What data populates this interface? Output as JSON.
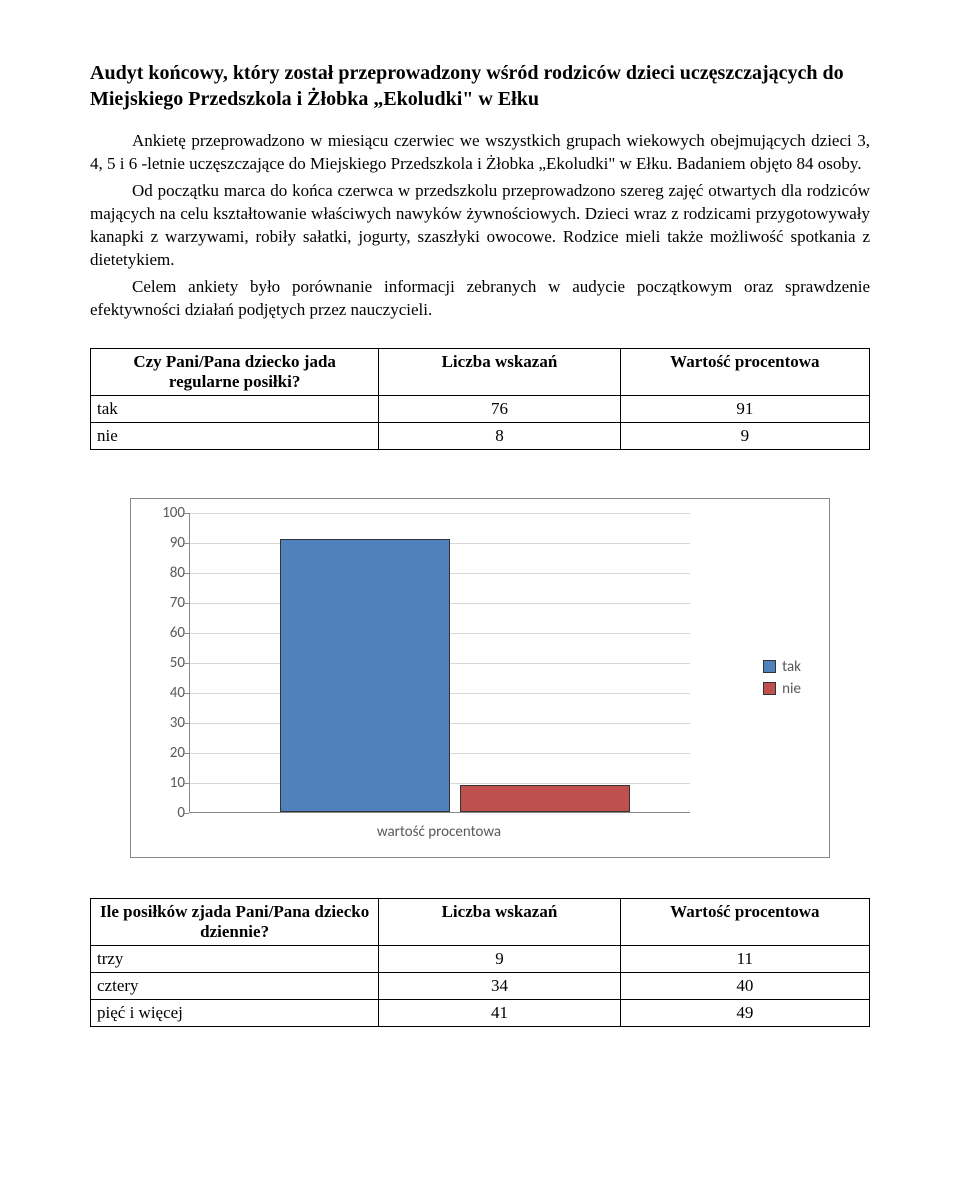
{
  "title": "Audyt końcowy, który został przeprowadzony wśród rodziców dzieci uczęszczających do Miejskiego Przedszkola i Żłobka „Ekoludki\" w Ełku",
  "paragraphs": {
    "p1": "Ankietę przeprowadzono w miesiącu czerwiec we wszystkich grupach wiekowych obejmujących dzieci 3, 4, 5 i 6 -letnie uczęszczające do Miejskiego Przedszkola i Żłobka „Ekoludki\" w Ełku. Badaniem objęto 84 osoby.",
    "p2": "Od początku marca do końca czerwca w przedszkolu przeprowadzono szereg zajęć otwartych dla rodziców mających na celu kształtowanie właściwych nawyków żywnościowych. Dzieci wraz z rodzicami przygotowywały kanapki z warzywami, robiły sałatki, jogurty, szaszłyki owocowe. Rodzice mieli także możliwość spotkania z dietetykiem.",
    "p3": "Celem ankiety było porównanie informacji zebranych w audycie początkowym oraz sprawdzenie efektywności działań podjętych przez nauczycieli."
  },
  "table1": {
    "headers": [
      "Czy Pani/Pana dziecko jada regularne posiłki?",
      "Liczba wskazań",
      "Wartość procentowa"
    ],
    "rows": [
      {
        "label": "tak",
        "count": "76",
        "pct": "91"
      },
      {
        "label": "nie",
        "count": "8",
        "pct": "9"
      }
    ]
  },
  "chart": {
    "y_ticks": [
      0,
      10,
      20,
      30,
      40,
      50,
      60,
      70,
      80,
      90,
      100
    ],
    "y_max": 100,
    "x_label": "wartość procentowa",
    "series": [
      {
        "name": "tak",
        "value": 91,
        "color": "#4f81bd"
      },
      {
        "name": "nie",
        "value": 9,
        "color": "#c0504d"
      }
    ],
    "bar_positions_pct": [
      18,
      54
    ],
    "bar_width_pct": 34,
    "grid_color": "#d9d9d9",
    "axis_color": "#888888"
  },
  "table2": {
    "headers": [
      "Ile posiłków zjada Pani/Pana dziecko dziennie?",
      "Liczba wskazań",
      "Wartość procentowa"
    ],
    "rows": [
      {
        "label": "trzy",
        "count": "9",
        "pct": "11"
      },
      {
        "label": "cztery",
        "count": "34",
        "pct": "40"
      },
      {
        "label": "pięć i więcej",
        "count": "41",
        "pct": "49"
      }
    ]
  }
}
